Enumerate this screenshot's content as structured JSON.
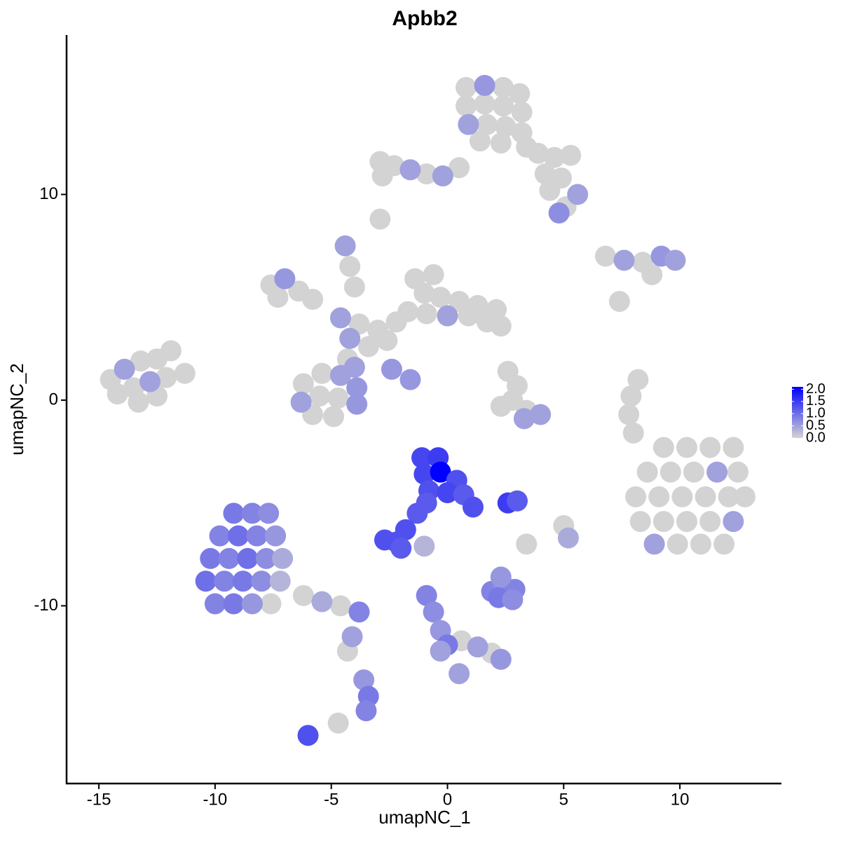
{
  "chart_data": {
    "type": "scatter",
    "title": "Apbb2",
    "x_label": "umapNC_1",
    "y_label": "umapNC_2",
    "xlim": [
      -16.39,
      14.37
    ],
    "ylim": [
      -18.64,
      17.75
    ],
    "xticks": [
      -15,
      -10,
      -5,
      0,
      5,
      10
    ],
    "yticks": [
      -10,
      0,
      10
    ],
    "colors": [
      "#d3d3d3",
      "#0000ff"
    ],
    "colorlim": [
      0,
      2.1
    ],
    "colorticks": [
      {
        "value": 0,
        "label": "0.0"
      },
      {
        "value": 0.5,
        "label": "0.5"
      },
      {
        "value": 1,
        "label": "1.0"
      },
      {
        "value": 1.5,
        "label": "1.5"
      },
      {
        "value": 2,
        "label": "2.0"
      }
    ],
    "x": [
      0.8,
      1.6,
      2.4,
      3.1,
      0.8,
      1.6,
      2.4,
      3.2,
      0.9,
      1.7,
      2.5,
      3.2,
      1.4,
      2.3,
      3.4,
      3.9,
      4.6,
      5.3,
      4.2,
      4.9,
      5.6,
      4.4,
      5.1,
      4.8,
      -2.9,
      -2.3,
      -1.6,
      -0.9,
      -0.2,
      0.5,
      -2.8,
      -2.9,
      -7.6,
      -7.0,
      -6.4,
      -5.8,
      -7.3,
      -4.6,
      -3.8,
      -3.0,
      -4.2,
      -3.4,
      -2.6,
      -1.4,
      -0.6,
      -1.0,
      -0.3,
      0.5,
      1.3,
      2.1,
      -1.7,
      -0.9,
      0,
      0.9,
      1.7,
      2.3,
      -2.2,
      -4.4,
      -4.2,
      -4.0,
      -2.4,
      -1.6,
      -6.2,
      -5.4,
      -4.6,
      -3.9,
      -6.3,
      -5.5,
      -4.7,
      -3.9,
      -5.8,
      -4.9,
      -4.3,
      -4.0,
      -14.5,
      -13.9,
      -13.2,
      -12.5,
      -11.9,
      -14.2,
      -13.5,
      -12.8,
      -12.1,
      -11.3,
      -13.3,
      -12.5,
      2.6,
      3.0,
      2.8,
      2.3,
      3.4,
      4.0,
      3.3,
      6.8,
      7.6,
      8.4,
      9.2,
      9.8,
      8.8,
      7.4,
      8.2,
      7.9,
      7.8,
      8.0,
      9.3,
      10.3,
      11.3,
      12.3,
      8.6,
      9.6,
      10.6,
      11.6,
      12.5,
      8.1,
      9.1,
      10.1,
      11.1,
      12.1,
      12.8,
      8.3,
      9.3,
      10.3,
      11.3,
      12.3,
      8.9,
      9.9,
      10.9,
      11.9,
      -1.1,
      -0.4,
      -1.0,
      -0.3,
      0.4,
      -0.8,
      0,
      0.7,
      1.1,
      -0.9,
      -1.3,
      -1.8,
      -2.7,
      -2.2,
      -2.0,
      2.6,
      3.0,
      -1.0,
      -9.2,
      -8.4,
      -7.7,
      -9.8,
      -9.0,
      -8.2,
      -7.4,
      -10.2,
      -9.4,
      -8.6,
      -7.8,
      -7.1,
      -10.4,
      -9.6,
      -8.8,
      -8.0,
      -7.2,
      -10.0,
      -9.2,
      -8.4,
      -7.6,
      -6.2,
      -5.4,
      -4.6,
      -3.8,
      -4.1,
      -4.3,
      -3.6,
      -3.4,
      -3.5,
      -6.0,
      -4.7,
      1.9,
      2.4,
      2.9,
      2.2,
      2.8,
      2.3,
      -0.9,
      -0.6,
      -0.3,
      0,
      0.6,
      1.3,
      1.9,
      2.3,
      -0.3,
      0.5,
      5.0,
      5.2,
      3.4
    ],
    "y": [
      15.2,
      15.3,
      15.2,
      14.9,
      14.3,
      14.4,
      14.3,
      14.0,
      13.4,
      13.4,
      13.3,
      13.0,
      12.6,
      12.5,
      12.3,
      12.0,
      11.8,
      11.9,
      11.0,
      10.8,
      10.0,
      10.2,
      9.4,
      9.1,
      11.6,
      11.4,
      11.2,
      11.0,
      10.9,
      11.3,
      10.9,
      8.8,
      5.6,
      5.9,
      5.3,
      4.9,
      5.0,
      4.0,
      3.7,
      3.4,
      3.0,
      2.6,
      2.9,
      5.9,
      6.1,
      5.2,
      5.0,
      4.8,
      4.6,
      4.4,
      4.3,
      4.2,
      4.1,
      4.1,
      3.8,
      3.6,
      3.8,
      7.5,
      6.5,
      5.5,
      1.5,
      1.0,
      0.8,
      1.3,
      1.2,
      0.6,
      -0.1,
      0.2,
      0.1,
      -0.2,
      -0.7,
      -0.8,
      2.0,
      1.6,
      1.0,
      1.5,
      1.9,
      2.0,
      2.4,
      0.3,
      0.6,
      0.9,
      1.1,
      1.3,
      -0.1,
      0.2,
      1.4,
      0.7,
      0,
      -0.3,
      -0.5,
      -0.7,
      -0.9,
      7.0,
      6.8,
      6.7,
      7.0,
      6.8,
      6.1,
      4.8,
      1.0,
      0.2,
      -0.7,
      -1.6,
      -2.3,
      -2.3,
      -2.3,
      -2.3,
      -3.5,
      -3.5,
      -3.5,
      -3.5,
      -3.5,
      -4.7,
      -4.7,
      -4.7,
      -4.7,
      -4.7,
      -4.7,
      -5.9,
      -5.9,
      -5.9,
      -5.9,
      -5.9,
      -7.0,
      -7.0,
      -7.0,
      -7.0,
      -2.8,
      -2.8,
      -3.6,
      -3.5,
      -3.9,
      -4.4,
      -4.5,
      -4.6,
      -5.2,
      -5.0,
      -5.5,
      -6.3,
      -6.8,
      -6.9,
      -7.2,
      -5.0,
      -4.9,
      -7.1,
      -5.5,
      -5.5,
      -5.5,
      -6.6,
      -6.6,
      -6.6,
      -6.6,
      -7.7,
      -7.7,
      -7.7,
      -7.7,
      -7.7,
      -8.8,
      -8.8,
      -8.8,
      -8.8,
      -8.8,
      -9.9,
      -9.9,
      -9.9,
      -9.9,
      -9.5,
      -9.8,
      -10.0,
      -10.3,
      -11.5,
      -12.2,
      -13.6,
      -14.4,
      -15.1,
      -16.3,
      -15.7,
      -9.3,
      -9.0,
      -9.2,
      -9.6,
      -9.7,
      -8.6,
      -9.5,
      -10.3,
      -11.2,
      -11.9,
      -11.7,
      -12.0,
      -12.3,
      -12.6,
      -12.2,
      -13.3,
      -6.1,
      -6.7,
      -7.0
    ],
    "values": [
      0,
      0.6,
      0,
      0,
      0,
      0,
      0,
      0,
      0.5,
      0,
      0,
      0,
      0,
      0,
      0,
      0,
      0,
      0,
      0,
      0,
      0.5,
      0,
      0,
      0.7,
      0,
      0,
      0.5,
      0,
      0.5,
      0,
      0,
      0,
      0,
      0.6,
      0,
      0,
      0,
      0.5,
      0,
      0,
      0.5,
      0,
      0,
      0,
      0,
      0,
      0,
      0,
      0,
      0,
      0,
      0,
      0.5,
      0,
      0,
      0,
      0,
      0.5,
      0,
      0,
      0.6,
      0.6,
      0,
      0,
      0.5,
      0.6,
      0.5,
      0,
      0,
      0.6,
      0,
      0,
      0,
      0.5,
      0,
      0.5,
      0,
      0,
      0,
      0,
      0,
      0.5,
      0,
      0,
      0,
      0,
      0,
      0,
      0,
      0,
      0,
      0.5,
      0.5,
      0,
      0.5,
      0,
      0.6,
      0.5,
      0,
      0,
      0,
      0,
      0,
      0,
      0,
      0,
      0,
      0,
      0,
      0,
      0,
      0.5,
      0,
      0,
      0,
      0,
      0,
      0,
      0,
      0,
      0,
      0,
      0,
      0.5,
      0.5,
      0,
      0,
      0,
      1.4,
      1.5,
      1.4,
      2.1,
      1.3,
      1.3,
      1.4,
      1.2,
      1.3,
      1.2,
      1.2,
      1.3,
      1.3,
      1.3,
      1.2,
      1.5,
      1.2,
      0.3,
      0.9,
      0.8,
      0.7,
      0.8,
      1.0,
      0.8,
      0.6,
      0.9,
      0.8,
      1.0,
      0.7,
      0.4,
      1.0,
      0.8,
      0.9,
      0.7,
      0.3,
      0.8,
      0.9,
      0.6,
      0,
      0,
      0.4,
      0,
      0.8,
      0.5,
      0,
      0.6,
      0.9,
      0.8,
      1.3,
      0,
      0.8,
      0.7,
      0.8,
      0.9,
      0.7,
      0.6,
      0.8,
      0.7,
      0.6,
      0.9,
      0,
      0.5,
      0,
      0.6,
      0.5,
      0.5,
      0,
      0.4,
      0
    ]
  }
}
